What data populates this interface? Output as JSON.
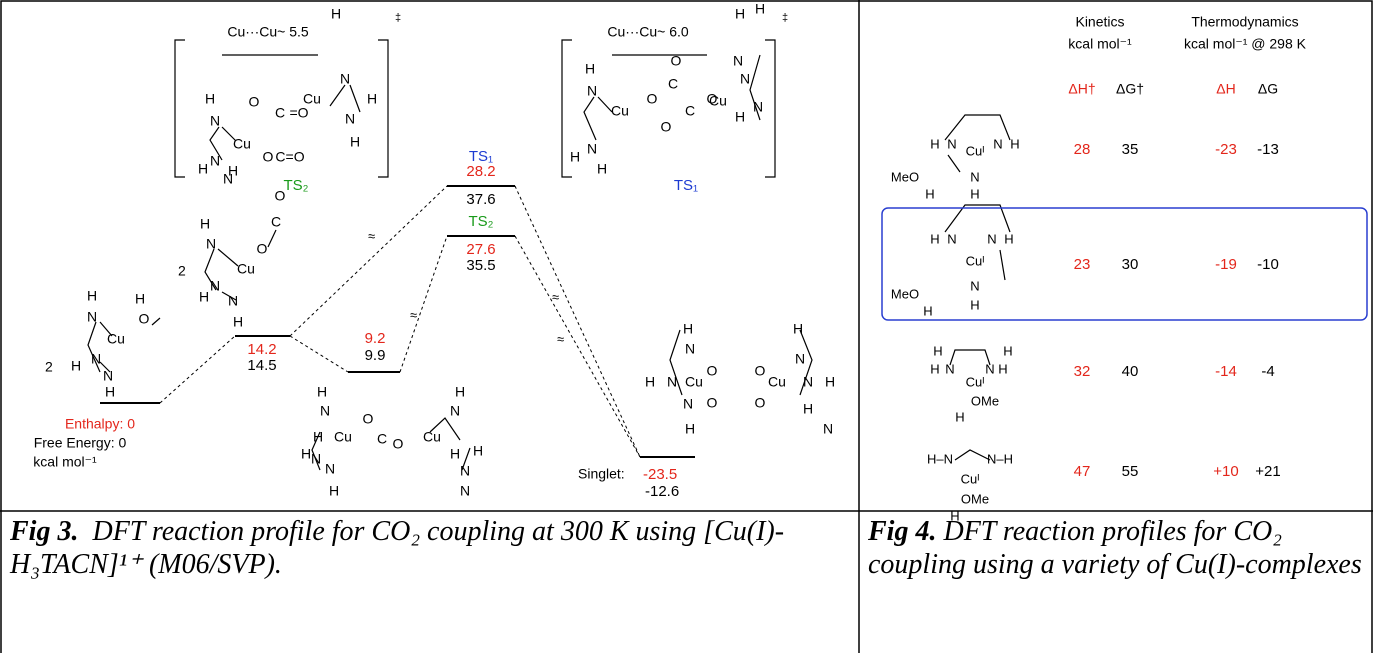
{
  "fig3": {
    "ts2_box": {
      "distance": "Cu···Cu~ 5.5",
      "dagger": "‡",
      "label": "TS₂",
      "atoms": [
        "H",
        "N",
        "Cu",
        "O",
        "C",
        "=O",
        "Cu",
        "N",
        "H",
        "N",
        "H",
        "N",
        "H",
        "O",
        "C=O",
        "N",
        "H",
        "H"
      ]
    },
    "ts1_box": {
      "distance": "Cu···Cu~ 6.0",
      "dagger": "‡",
      "label": "TS₁",
      "atoms": [
        "H",
        "N",
        "Cu",
        "O",
        "C",
        "O",
        "C",
        "O",
        "O",
        "Cu",
        "N",
        "H",
        "N",
        "H",
        "N",
        "H",
        "H",
        "N",
        "H"
      ]
    },
    "reactant": {
      "count": "2",
      "atoms": [
        "H",
        "N",
        "Cu",
        "H",
        "O",
        "N",
        "H",
        "N",
        "H"
      ]
    },
    "intermediate": {
      "count": "2",
      "atoms": [
        "H",
        "N",
        "Cu",
        "O",
        "C",
        "O",
        "N",
        "H",
        "N",
        "H"
      ]
    },
    "dimer": {
      "atoms": [
        "H",
        "N",
        "Cu",
        "O",
        "C",
        "O",
        "Cu",
        "N",
        "H",
        "H",
        "N",
        "N",
        "H",
        "H",
        "N",
        "N",
        "H",
        "H"
      ]
    },
    "product": {
      "atoms": [
        "H",
        "N",
        "H",
        "N",
        "Cu",
        "O",
        "O",
        "O",
        "O",
        "Cu",
        "N",
        "H",
        "N",
        "H",
        "H",
        "N",
        "H",
        "N"
      ]
    },
    "reactant_level": {
      "enthalpy_label": "Enthalpy: 0",
      "free_energy_label": "Free Energy: 0",
      "units": "kcal mol⁻¹"
    },
    "levels": [
      {
        "enthalpy": 14.2,
        "free_energy": 14.5
      },
      {
        "enthalpy": 9.2,
        "free_energy": 9.9
      },
      {
        "name": "TS₁",
        "enthalpy": 28.2,
        "free_energy": 37.6
      },
      {
        "name": "TS₂",
        "enthalpy": 27.6,
        "free_energy": 35.5
      },
      {
        "name": "Singlet:",
        "enthalpy": -23.5,
        "free_energy": -12.6
      }
    ],
    "caption": {
      "lead": "Fig 3.",
      "text": "DFT reaction profile for CO₂ coupling at 300 K using [Cu(I)-H₃TACN]¹⁺ (M06/SVP)."
    }
  },
  "fig4": {
    "header": {
      "kinetics": "Kinetics",
      "kinetics_units": "kcal mol⁻¹",
      "thermo": "Thermodynamics",
      "thermo_units": "kcal mol⁻¹ @ 298 K",
      "columns": [
        "ΔH†",
        "ΔG†",
        "ΔH",
        "ΔG"
      ]
    },
    "rows": [
      {
        "atoms": [
          "H",
          "N",
          "N",
          "H",
          "Cuᴵ",
          "N",
          "MeO",
          "H",
          "H"
        ],
        "values": [
          28,
          35,
          -23,
          -13
        ]
      },
      {
        "atoms": [
          "H",
          "N",
          "N",
          "H",
          "Cuᴵ",
          "N",
          "MeO",
          "H",
          "H"
        ],
        "values": [
          23,
          30,
          -19,
          -10
        ]
      },
      {
        "atoms": [
          "H",
          "N",
          "N",
          "H",
          "H",
          "Cuᴵ",
          "H",
          "OMe",
          "H"
        ],
        "values": [
          32,
          40,
          -14,
          -4
        ]
      },
      {
        "atoms": [
          "H–N",
          "N–H",
          "Cuᴵ",
          "OMe",
          "H"
        ],
        "values": [
          47,
          55,
          "+10",
          "+21"
        ]
      }
    ],
    "caption": {
      "lead": "Fig 4.",
      "text": "DFT reaction profiles for CO₂ coupling using a variety of Cu(I)-complexes"
    }
  }
}
